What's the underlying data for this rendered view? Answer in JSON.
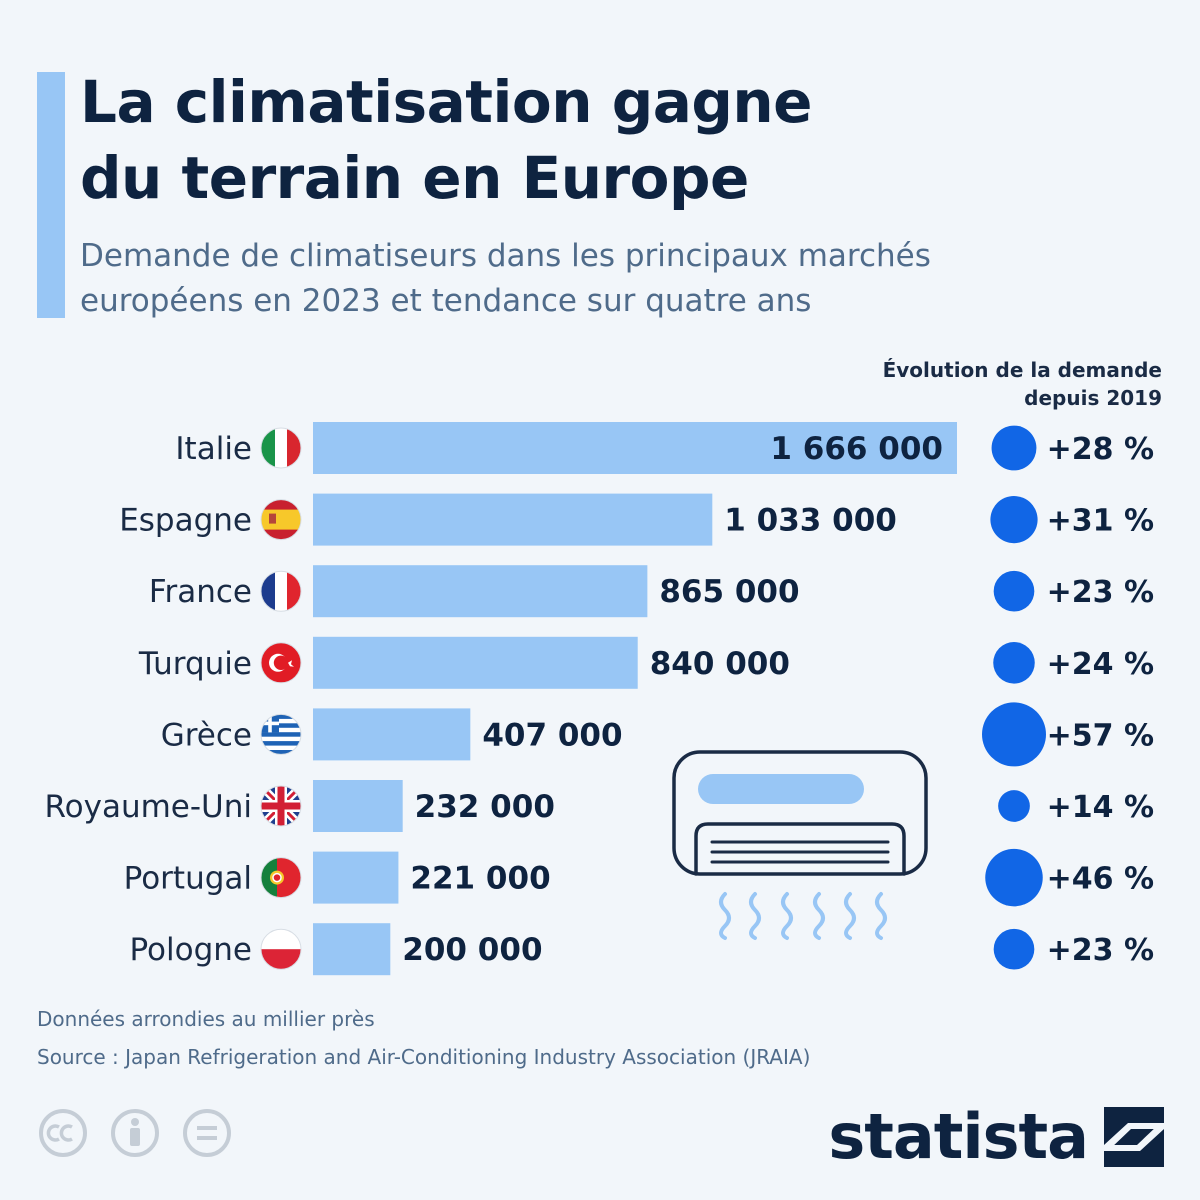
{
  "title_line1": "La climatisation gagne",
  "title_line2": "du terrain en Europe",
  "subtitle_line1": "Demande de climatiseurs dans les principaux marchés",
  "subtitle_line2": "européens en 2023 et tendance sur quatre ans",
  "evolution_header_line1": "Évolution de la demande",
  "evolution_header_line2": "depuis 2019",
  "note": "Données arrondies au millier près",
  "source": "Source : Japan Refrigeration and Air-Conditioning Industry Association (JRAIA)",
  "brand": "statista",
  "colors": {
    "bar": "#98c6f5",
    "bubble": "#1166e6",
    "text_dark": "#0e2340",
    "accent": "#98c6f5"
  },
  "license_icons": [
    "creative-commons-icon",
    "attribution-person-icon",
    "no-derivatives-icon"
  ],
  "chart_data": {
    "type": "bar",
    "orientation": "horizontal",
    "categories": [
      "Italie",
      "Espagne",
      "France",
      "Turquie",
      "Grèce",
      "Royaume-Uni",
      "Portugal",
      "Pologne"
    ],
    "values": [
      1666000,
      1033000,
      865000,
      840000,
      407000,
      232000,
      221000,
      200000
    ],
    "value_labels": [
      "1 666 000",
      "1 033 000",
      "865 000",
      "840 000",
      "407 000",
      "232 000",
      "221 000",
      "200 000"
    ],
    "flags": [
      "italy-flag-icon",
      "spain-flag-icon",
      "france-flag-icon",
      "turkey-flag-icon",
      "greece-flag-icon",
      "uk-flag-icon",
      "portugal-flag-icon",
      "poland-flag-icon"
    ],
    "change_pct": [
      28,
      31,
      23,
      24,
      57,
      14,
      46,
      23
    ],
    "change_labels": [
      "+28 %",
      "+31 %",
      "+23 %",
      "+24 %",
      "+57 %",
      "+14 %",
      "+46 %",
      "+23 %"
    ],
    "grid": false,
    "legend": "none"
  }
}
